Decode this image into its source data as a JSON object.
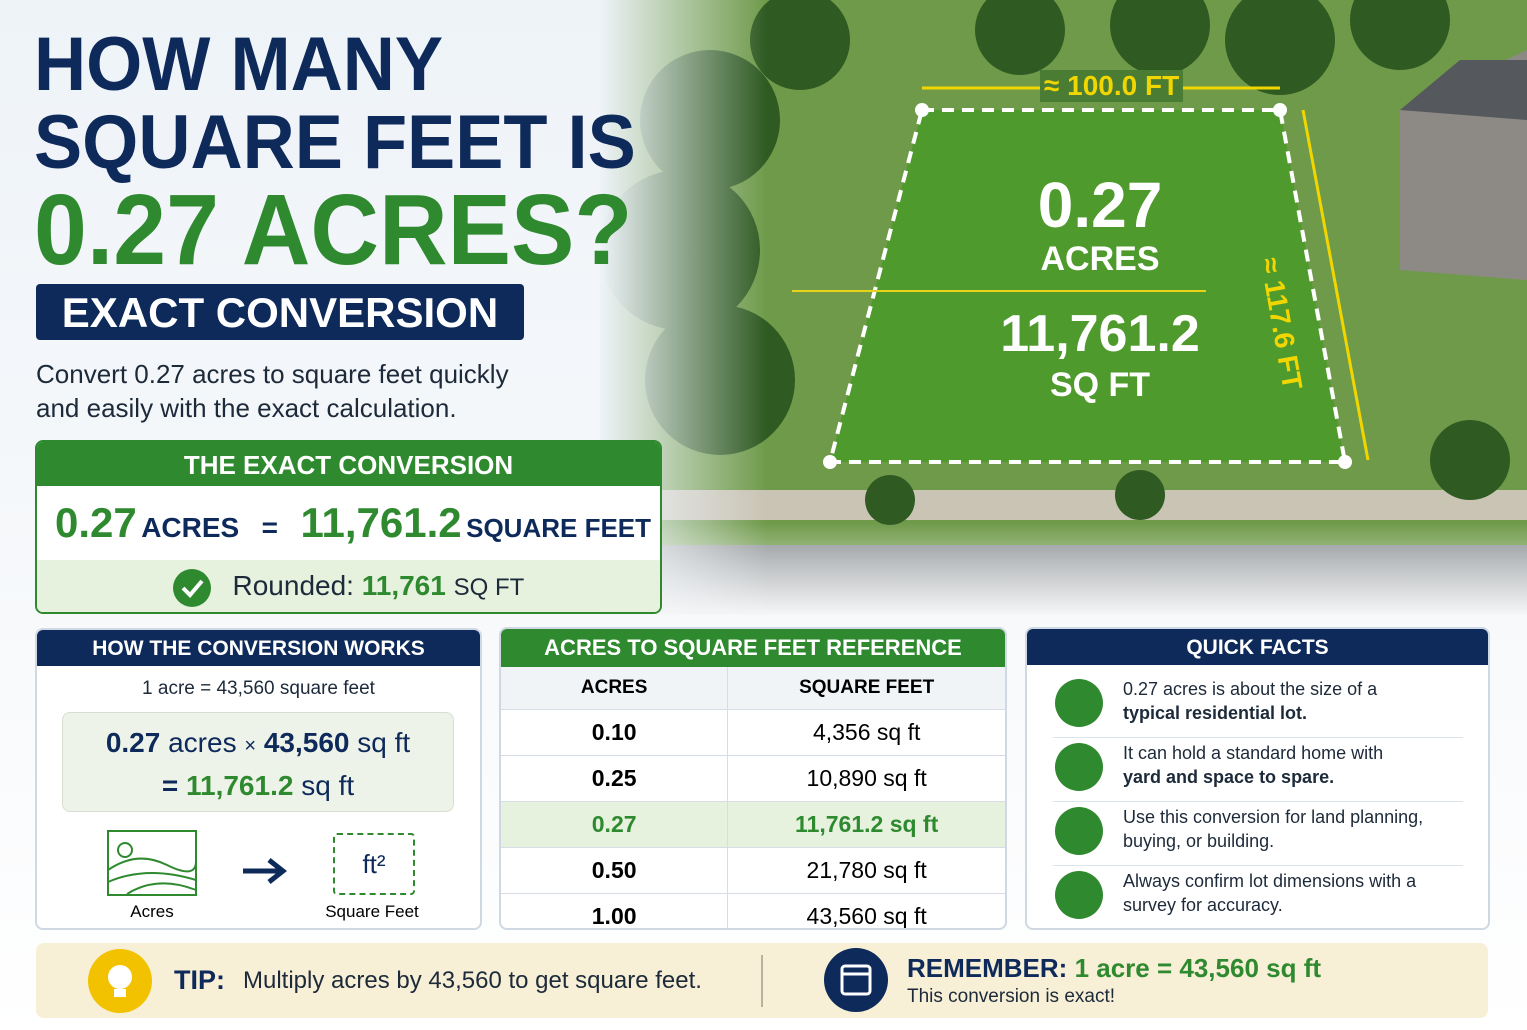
{
  "header": {
    "title_line1": "HOW MANY",
    "title_line2": "SQUARE FEET IS",
    "title_line3": "0.27 ACRES?",
    "badge": "EXACT CONVERSION",
    "description": "Convert 0.27 acres to square feet quickly and easily with the exact calculation."
  },
  "image": {
    "width_label": "≈ 100.0 FT",
    "depth_label": "≈ 117.6 FT",
    "acres_value": "0.27",
    "acres_unit": "ACRES",
    "sqft_value": "11,761.2",
    "sqft_unit": "SQ FT"
  },
  "exact_conversion": {
    "title": "THE EXACT CONVERSION",
    "acres_value": "0.27",
    "acres_unit": "ACRES",
    "equals": "=",
    "sqft_value": "11,761.2",
    "sqft_unit": "SQUARE FEET",
    "rounded_label": "Rounded:",
    "rounded_value": "11,761",
    "rounded_unit": "SQ FT"
  },
  "how_it_works": {
    "title": "HOW THE CONVERSION WORKS",
    "rule": "1 acre = 43,560 square feet",
    "formula": [
      "0.27",
      "acres",
      "×",
      "43,560",
      "sq ft",
      "=",
      "11,761.2",
      "sq ft"
    ],
    "icon_from_label": "Acres",
    "icon_to_symbol": "ft²",
    "icon_to_label": "Square Feet"
  },
  "reference_table": {
    "title": "ACRES TO SQUARE FEET REFERENCE",
    "columns": [
      "ACRES",
      "SQUARE FEET"
    ],
    "rows": [
      [
        "0.10",
        "4,356 sq ft"
      ],
      [
        "0.25",
        "10,890 sq ft"
      ],
      [
        "0.27",
        "11,761.2 sq ft"
      ],
      [
        "0.50",
        "21,780 sq ft"
      ],
      [
        "1.00",
        "43,560 sq ft"
      ]
    ]
  },
  "quick_facts": {
    "title": "QUICK FACTS",
    "items": [
      {
        "text": "0.27 acres is about the size of a",
        "bold": "typical residential lot."
      },
      {
        "text": "It can hold a standard home with",
        "bold": "yard and space to spare."
      },
      {
        "text": "Use this conversion for land planning, buying, or building."
      },
      {
        "text": "Always confirm lot dimensions with a survey for accuracy."
      }
    ]
  },
  "footer": {
    "tip_label": "TIP:",
    "tip_text": "Multiply acres by 43,560 to get square feet.",
    "remember_label": "REMEMBER:",
    "remember_value": "1 acre = 43,560 sq ft",
    "remember_note": "This conversion is exact!"
  }
}
